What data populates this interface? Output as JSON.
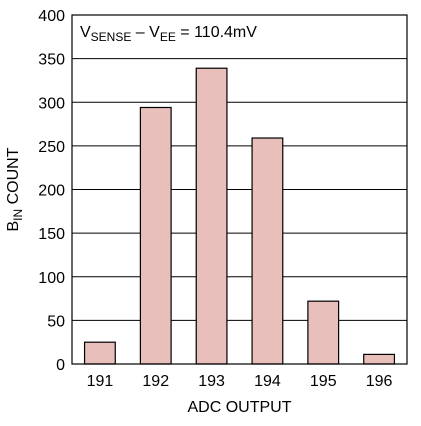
{
  "chart_data": {
    "type": "bar",
    "title": "",
    "annotation": {
      "parts": [
        {
          "text": "V",
          "style": "normal"
        },
        {
          "text": "SENSE",
          "style": "sub"
        },
        {
          "text": " – V",
          "style": "normal"
        },
        {
          "text": "EE",
          "style": "sub"
        },
        {
          "text": " = 110.4mV",
          "style": "normal"
        }
      ]
    },
    "xlabel": "ADC OUTPUT",
    "ylabel": {
      "parts": [
        {
          "text": "B",
          "style": "normal"
        },
        {
          "text": "IN",
          "style": "sub"
        },
        {
          "text": " COUNT",
          "style": "normal"
        }
      ]
    },
    "categories": [
      "191",
      "192",
      "193",
      "194",
      "195",
      "196"
    ],
    "values": [
      25,
      294,
      339,
      259,
      72,
      11
    ],
    "ylim": [
      0,
      400
    ],
    "yticks": [
      "0",
      "50",
      "100",
      "150",
      "200",
      "250",
      "300",
      "350",
      "400"
    ],
    "grid": "horizontal",
    "colors": {
      "bar_fill": "#e8bfba",
      "bar_stroke": "#000000",
      "grid": "#000000",
      "axis": "#000000"
    }
  }
}
